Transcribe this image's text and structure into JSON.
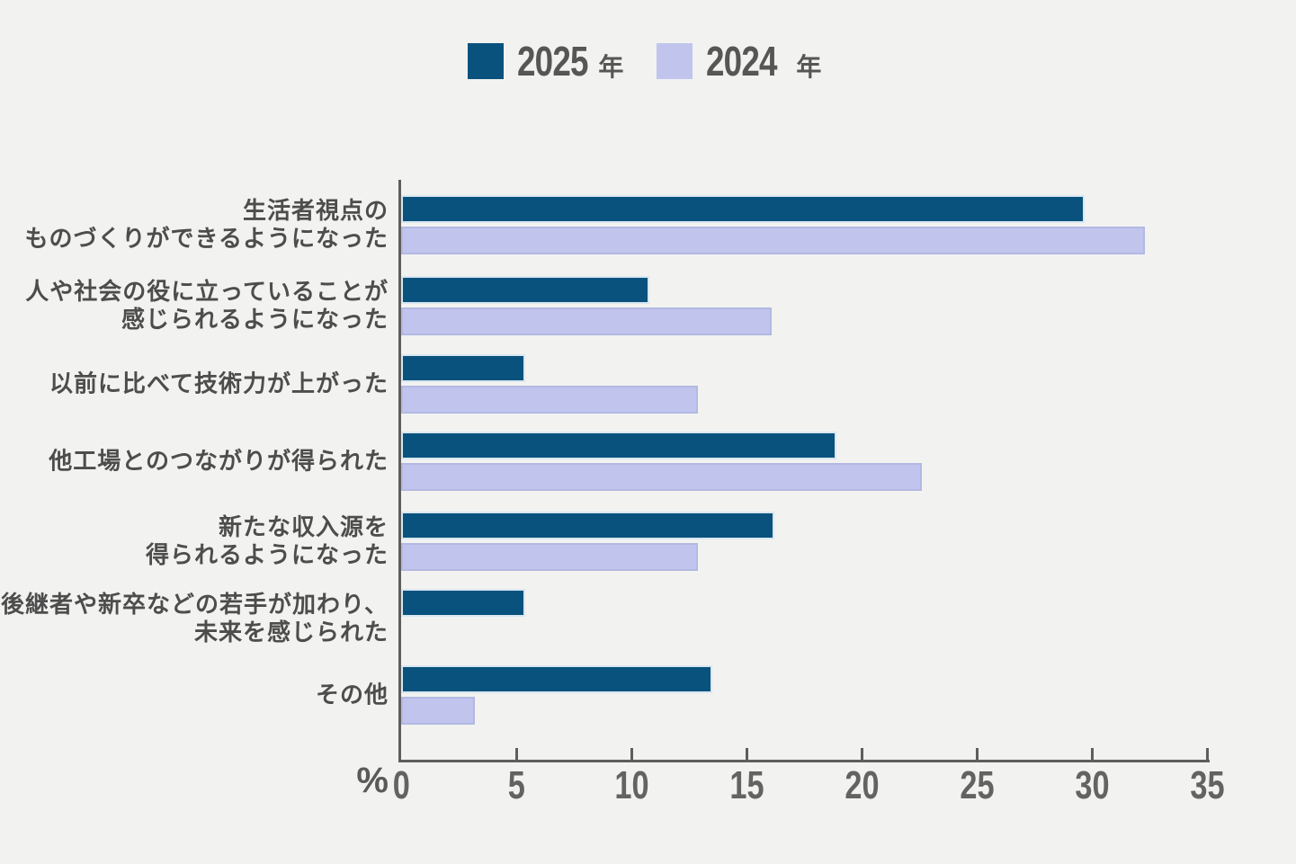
{
  "legend": {
    "items": [
      {
        "year": "2025",
        "unit": "年",
        "color": "#0a527e"
      },
      {
        "year": "2024",
        "unit": "年",
        "color": "#c1c5ee"
      }
    ]
  },
  "axis": {
    "unit_label": "%",
    "ticks": [
      0,
      5,
      10,
      15,
      20,
      25,
      30,
      35
    ]
  },
  "chart_data": {
    "type": "bar",
    "orientation": "horizontal",
    "title": "",
    "categories": [
      "生活者視点の\nものづくりができるようになった",
      "人や社会の役に立っていることが\n感じられるようになった",
      "以前に比べて技術力が上がった",
      "他工場とのつながりが得られた",
      "新たな収入源を\n得られるようになった",
      "後継者や新卒などの若手が加わり、\n未来を感じられた",
      "その他"
    ],
    "series": [
      {
        "name": "2025年",
        "color": "#0a527e",
        "values": [
          29.7,
          10.8,
          5.4,
          18.9,
          16.2,
          5.4,
          13.5
        ]
      },
      {
        "name": "2024年",
        "color": "#c1c5ee",
        "values": [
          32.3,
          16.1,
          12.9,
          22.6,
          12.9,
          0,
          3.2
        ]
      }
    ],
    "xlabel": "%",
    "xlim": [
      0,
      35
    ],
    "xticks": [
      0,
      5,
      10,
      15,
      20,
      25,
      30,
      35
    ],
    "grid": false,
    "legend_position": "top"
  }
}
